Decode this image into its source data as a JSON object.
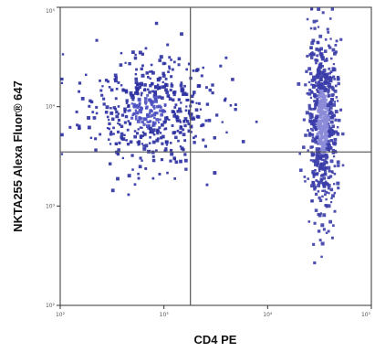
{
  "chart_data": {
    "type": "scatter",
    "subtype": "flow-cytometry-density-plot",
    "title": "",
    "xlabel": "CD4 PE",
    "ylabel": "NKTA255 Alexa Fluor® 647",
    "x_scale": "log",
    "y_scale": "log",
    "xlim": [
      100,
      100000
    ],
    "ylim": [
      100,
      100000
    ],
    "x_ticks": [
      {
        "value": 100,
        "label": "10²"
      },
      {
        "value": 1000,
        "label": "10³"
      },
      {
        "value": 10000,
        "label": "10⁴"
      },
      {
        "value": 100000,
        "label": "10⁵"
      }
    ],
    "y_ticks": [
      {
        "value": 100,
        "label": "10²"
      },
      {
        "value": 1000,
        "label": "10³"
      },
      {
        "value": 10000,
        "label": "10⁴"
      },
      {
        "value": 100000,
        "label": "10⁵"
      }
    ],
    "gates": {
      "x": 1800,
      "y": 3500
    },
    "populations": [
      {
        "name": "",
        "x_center": 700,
        "y_center": 9000,
        "x_spread": 0.32,
        "y_spread": 0.28,
        "count": 520,
        "color": "#2b2fa0",
        "core_color": "#4b4fc0"
      },
      {
        "name": "",
        "x_center": 34000,
        "y_center": 7000,
        "x_spread": 0.07,
        "y_spread": 0.42,
        "count": 700,
        "color": "#3a3ca8",
        "core_color": "#8a8ad8"
      }
    ],
    "grid": false,
    "colors": {
      "dots": "#2b2fa0",
      "dense": "#6a6ad0",
      "gate_line": "#555555",
      "frame": "#333333"
    }
  }
}
